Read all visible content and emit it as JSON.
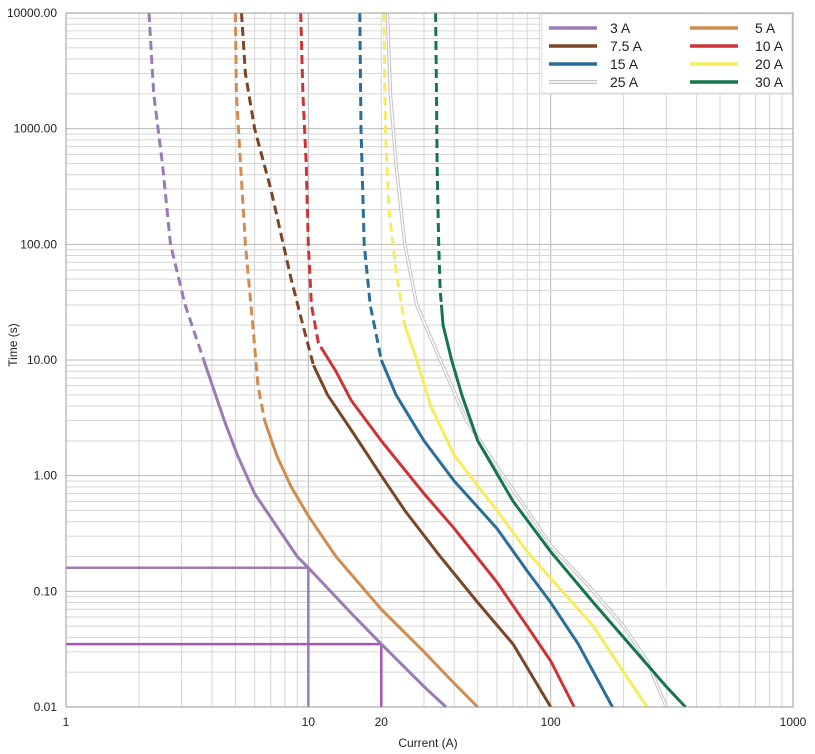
{
  "chart_data": {
    "type": "line",
    "xlabel": "Current (A)",
    "ylabel": "Time (s)",
    "x_scale": "log",
    "y_scale": "log",
    "xlim": [
      1,
      1000
    ],
    "ylim": [
      0.01,
      10000
    ],
    "grid": true,
    "legend_position": "top-right",
    "x_tick_labels": [
      {
        "value": 1,
        "label": "1"
      },
      {
        "value": 10,
        "label": "10"
      },
      {
        "value": 20,
        "label": "20"
      },
      {
        "value": 100,
        "label": "100"
      },
      {
        "value": 1000,
        "label": "1000"
      }
    ],
    "y_tick_labels": [
      {
        "value": 10000,
        "label": "10000.00"
      },
      {
        "value": 1000,
        "label": "1000.00"
      },
      {
        "value": 100,
        "label": "100.00"
      },
      {
        "value": 10,
        "label": "10.00"
      },
      {
        "value": 1,
        "label": "1.00"
      },
      {
        "value": 0.1,
        "label": "0.10"
      },
      {
        "value": 0.01,
        "label": "0.01"
      }
    ],
    "series": [
      {
        "name": "3 A",
        "color": "#9b7bb3",
        "dash_above": 10,
        "points": [
          [
            2.2,
            10000
          ],
          [
            2.3,
            2000
          ],
          [
            2.5,
            500
          ],
          [
            2.7,
            100
          ],
          [
            3.1,
            30
          ],
          [
            3.7,
            10
          ],
          [
            4.5,
            3
          ],
          [
            5.1,
            1.5
          ],
          [
            6.0,
            0.7
          ],
          [
            7.5,
            0.35
          ],
          [
            9.0,
            0.2
          ],
          [
            10,
            0.16
          ],
          [
            15,
            0.065
          ],
          [
            20,
            0.035
          ],
          [
            30,
            0.015
          ],
          [
            37,
            0.01
          ]
        ]
      },
      {
        "name": "5 A",
        "color": "#d18d4e",
        "dash_above": 3,
        "points": [
          [
            5.0,
            10000
          ],
          [
            5.05,
            2000
          ],
          [
            5.25,
            500
          ],
          [
            5.5,
            100
          ],
          [
            5.9,
            20
          ],
          [
            6.2,
            6
          ],
          [
            6.6,
            3
          ],
          [
            7.4,
            1.5
          ],
          [
            8.5,
            0.8
          ],
          [
            10,
            0.45
          ],
          [
            13,
            0.2
          ],
          [
            20,
            0.07
          ],
          [
            30,
            0.03
          ],
          [
            40,
            0.016
          ],
          [
            50,
            0.01
          ]
        ]
      },
      {
        "name": "7.5 A",
        "color": "#7a4628",
        "dash_above": 9,
        "points": [
          [
            5.3,
            10000
          ],
          [
            5.5,
            3000
          ],
          [
            6.0,
            1000
          ],
          [
            7.0,
            300
          ],
          [
            8.5,
            50
          ],
          [
            9.5,
            20
          ],
          [
            10.5,
            9
          ],
          [
            12,
            5
          ],
          [
            15,
            2.5
          ],
          [
            20,
            1
          ],
          [
            25,
            0.5
          ],
          [
            35,
            0.2
          ],
          [
            50,
            0.08
          ],
          [
            70,
            0.035
          ],
          [
            100,
            0.01
          ]
        ]
      },
      {
        "name": "10 A",
        "color": "#cc3437",
        "dash_above": 13,
        "points": [
          [
            9.3,
            10000
          ],
          [
            9.5,
            2000
          ],
          [
            9.8,
            500
          ],
          [
            10,
            100
          ],
          [
            10.3,
            30
          ],
          [
            11,
            14
          ],
          [
            13,
            8
          ],
          [
            15,
            4.5
          ],
          [
            20,
            2
          ],
          [
            30,
            0.7
          ],
          [
            40,
            0.35
          ],
          [
            60,
            0.12
          ],
          [
            80,
            0.05
          ],
          [
            100,
            0.025
          ],
          [
            125,
            0.01
          ]
        ]
      },
      {
        "name": "15 A",
        "color": "#2a6f99",
        "dash_above": 10,
        "points": [
          [
            16.3,
            10000
          ],
          [
            16.5,
            1000
          ],
          [
            17,
            100
          ],
          [
            18,
            30
          ],
          [
            20,
            10
          ],
          [
            23,
            5
          ],
          [
            30,
            2
          ],
          [
            40,
            0.9
          ],
          [
            60,
            0.35
          ],
          [
            80,
            0.15
          ],
          [
            100,
            0.08
          ],
          [
            130,
            0.035
          ],
          [
            180,
            0.01
          ]
        ]
      },
      {
        "name": "20 A",
        "color": "#f6ec5e",
        "dash_above": 20,
        "points": [
          [
            20.5,
            10000
          ],
          [
            20.8,
            1000
          ],
          [
            21.5,
            200
          ],
          [
            23,
            60
          ],
          [
            25,
            20
          ],
          [
            28,
            10
          ],
          [
            32,
            4
          ],
          [
            40,
            1.5
          ],
          [
            60,
            0.5
          ],
          [
            80,
            0.22
          ],
          [
            100,
            0.13
          ],
          [
            150,
            0.05
          ],
          [
            200,
            0.02
          ],
          [
            250,
            0.01
          ]
        ]
      },
      {
        "name": "25 A",
        "color": "#c4c4c4",
        "double": true,
        "dash_above": 30,
        "points": [
          [
            21.2,
            10000
          ],
          [
            21.8,
            2000
          ],
          [
            23,
            500
          ],
          [
            25,
            100
          ],
          [
            28,
            30
          ],
          [
            35,
            10
          ],
          [
            45,
            3
          ],
          [
            60,
            1.2
          ],
          [
            80,
            0.5
          ],
          [
            100,
            0.25
          ],
          [
            150,
            0.1
          ],
          [
            200,
            0.05
          ],
          [
            250,
            0.025
          ],
          [
            300,
            0.01
          ]
        ]
      },
      {
        "name": "30 A",
        "color": "#16764a",
        "dash_above": 30,
        "points": [
          [
            33.5,
            10000
          ],
          [
            33.8,
            2000
          ],
          [
            34,
            500
          ],
          [
            34.5,
            100
          ],
          [
            35,
            40
          ],
          [
            36,
            20
          ],
          [
            39,
            10
          ],
          [
            43,
            5
          ],
          [
            50,
            2
          ],
          [
            70,
            0.6
          ],
          [
            100,
            0.22
          ],
          [
            150,
            0.08
          ],
          [
            200,
            0.04
          ],
          [
            300,
            0.015
          ],
          [
            360,
            0.01
          ]
        ]
      }
    ],
    "reference_lines": [
      {
        "x": 10,
        "y": 0.16,
        "color": "#9b7bb3"
      },
      {
        "x": 20,
        "y": 0.035,
        "color": "#a855b5"
      }
    ]
  }
}
